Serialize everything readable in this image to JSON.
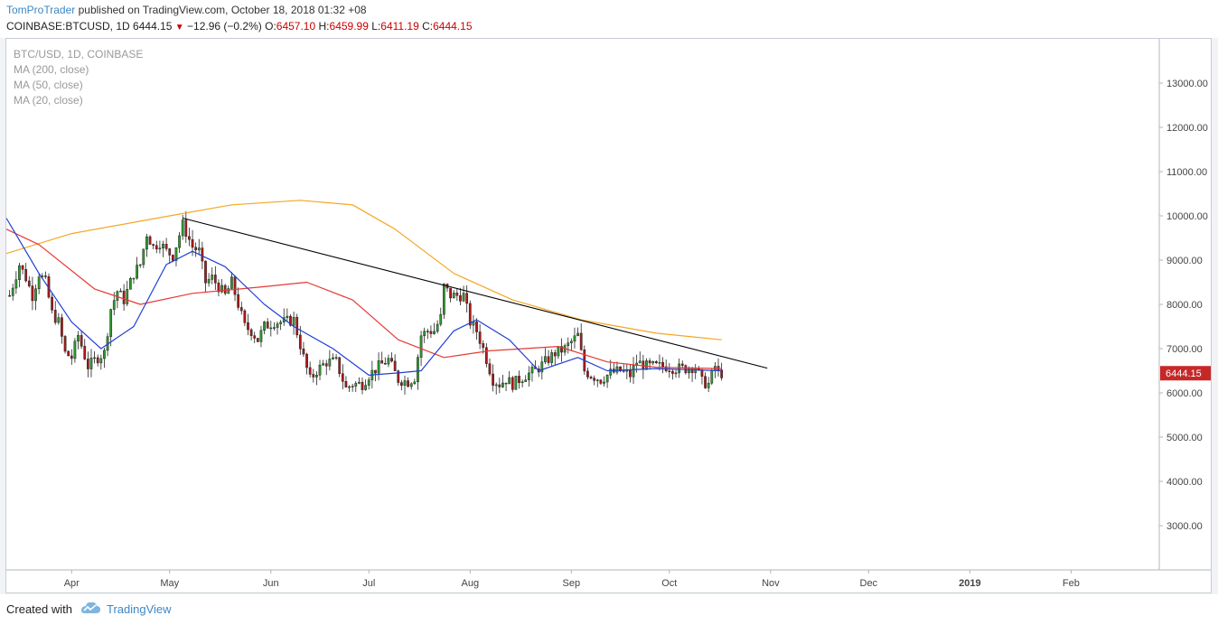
{
  "header": {
    "author": "TomProTrader",
    "published": "published on TradingView.com, October 18, 2018 01:32 +08"
  },
  "quote": {
    "symbol": "COINBASE:BTCUSD, 1D",
    "last": "6444.15",
    "change": "−12.96 (−0.2%)",
    "open_label": "O:",
    "open": "6457.10",
    "high_label": "H:",
    "high": "6459.99",
    "low_label": "L:",
    "low": "6411.19",
    "close_label": "C:",
    "close": "6444.15"
  },
  "legend": {
    "title": "BTC/USD, 1D, COINBASE",
    "ma200": "MA (200, close)",
    "ma50": "MA (50, close)",
    "ma20": "MA (20, close)"
  },
  "footer": {
    "created_with": "Created with",
    "brand": "TradingView"
  },
  "colors": {
    "up": "#2e9d2e",
    "down": "#b01818",
    "ma200": "#f5a623",
    "ma50": "#e53935",
    "ma20": "#1f3fd6",
    "trendline": "#000000",
    "price_badge": "#c62828"
  },
  "chart_data": {
    "type": "candlestick",
    "y_axis": {
      "ticks": [
        "13000.00",
        "12000.00",
        "11000.00",
        "10000.00",
        "9000.00",
        "8000.00",
        "7000.00",
        "6000.00",
        "5000.00",
        "4000.00",
        "3000.00"
      ],
      "range": [
        2000,
        14000
      ]
    },
    "x_axis": {
      "ticks": [
        "Apr",
        "May",
        "Jun",
        "Jul",
        "Aug",
        "Sep",
        "Oct",
        "Nov",
        "Dec",
        "2019",
        "Feb"
      ],
      "range": [
        "2018-03-12",
        "2019-02-28"
      ]
    },
    "last_price": "6444.15",
    "ohlc_anchor_closes": [
      [
        "2018-03-13",
        8200
      ],
      [
        "2018-03-16",
        8900
      ],
      [
        "2018-03-18",
        8600
      ],
      [
        "2018-03-20",
        8200
      ],
      [
        "2018-03-22",
        8700
      ],
      [
        "2018-03-24",
        8500
      ],
      [
        "2018-03-26",
        7800
      ],
      [
        "2018-03-28",
        7600
      ],
      [
        "2018-03-30",
        6900
      ],
      [
        "2018-04-01",
        6800
      ],
      [
        "2018-04-03",
        7300
      ],
      [
        "2018-04-06",
        6600
      ],
      [
        "2018-04-09",
        6800
      ],
      [
        "2018-04-11",
        6900
      ],
      [
        "2018-04-13",
        7900
      ],
      [
        "2018-04-15",
        8300
      ],
      [
        "2018-04-17",
        8100
      ],
      [
        "2018-04-20",
        8700
      ],
      [
        "2018-04-22",
        8900
      ],
      [
        "2018-04-24",
        9600
      ],
      [
        "2018-04-26",
        9300
      ],
      [
        "2018-04-28",
        9400
      ],
      [
        "2018-04-30",
        9200
      ],
      [
        "2018-05-02",
        9100
      ],
      [
        "2018-05-05",
        9800
      ],
      [
        "2018-05-08",
        9300
      ],
      [
        "2018-05-10",
        9200
      ],
      [
        "2018-05-12",
        8500
      ],
      [
        "2018-05-14",
        8600
      ],
      [
        "2018-05-16",
        8400
      ],
      [
        "2018-05-18",
        8200
      ],
      [
        "2018-05-20",
        8500
      ],
      [
        "2018-05-22",
        8000
      ],
      [
        "2018-05-24",
        7500
      ],
      [
        "2018-05-26",
        7400
      ],
      [
        "2018-05-28",
        7200
      ],
      [
        "2018-05-30",
        7500
      ],
      [
        "2018-06-02",
        7600
      ],
      [
        "2018-06-05",
        7600
      ],
      [
        "2018-06-08",
        7650
      ],
      [
        "2018-06-11",
        6800
      ],
      [
        "2018-06-13",
        6300
      ],
      [
        "2018-06-15",
        6500
      ],
      [
        "2018-06-18",
        6700
      ],
      [
        "2018-06-21",
        6700
      ],
      [
        "2018-06-24",
        6100
      ],
      [
        "2018-06-26",
        6200
      ],
      [
        "2018-06-29",
        6200
      ],
      [
        "2018-07-01",
        6400
      ],
      [
        "2018-07-04",
        6600
      ],
      [
        "2018-07-07",
        6750
      ],
      [
        "2018-07-10",
        6300
      ],
      [
        "2018-07-13",
        6250
      ],
      [
        "2018-07-15",
        6350
      ],
      [
        "2018-07-17",
        7300
      ],
      [
        "2018-07-19",
        7400
      ],
      [
        "2018-07-21",
        7400
      ],
      [
        "2018-07-23",
        7700
      ],
      [
        "2018-07-24",
        8400
      ],
      [
        "2018-07-26",
        8200
      ],
      [
        "2018-07-28",
        8200
      ],
      [
        "2018-07-30",
        8200
      ],
      [
        "2018-08-01",
        7600
      ],
      [
        "2018-08-03",
        7400
      ],
      [
        "2018-08-05",
        7000
      ],
      [
        "2018-08-08",
        6300
      ],
      [
        "2018-08-10",
        6200
      ],
      [
        "2018-08-12",
        6300
      ],
      [
        "2018-08-14",
        6200
      ],
      [
        "2018-08-16",
        6300
      ],
      [
        "2018-08-18",
        6400
      ],
      [
        "2018-08-21",
        6500
      ],
      [
        "2018-08-24",
        6700
      ],
      [
        "2018-08-27",
        6900
      ],
      [
        "2018-08-30",
        7000
      ],
      [
        "2018-09-03",
        7300
      ],
      [
        "2018-09-05",
        6500
      ],
      [
        "2018-09-07",
        6400
      ],
      [
        "2018-09-10",
        6300
      ],
      [
        "2018-09-13",
        6450
      ],
      [
        "2018-09-16",
        6500
      ],
      [
        "2018-09-19",
        6400
      ],
      [
        "2018-09-21",
        6700
      ],
      [
        "2018-09-24",
        6600
      ],
      [
        "2018-09-27",
        6600
      ],
      [
        "2018-09-30",
        6600
      ],
      [
        "2018-10-03",
        6550
      ],
      [
        "2018-10-06",
        6550
      ],
      [
        "2018-10-09",
        6600
      ],
      [
        "2018-10-11",
        6250
      ],
      [
        "2018-10-13",
        6200
      ],
      [
        "2018-10-15",
        6600
      ],
      [
        "2018-10-16",
        6450
      ],
      [
        "2018-10-17",
        6444.15
      ]
    ],
    "series": [
      {
        "name": "MA (200, close)",
        "values": [
          [
            "2018-03-12",
            9150
          ],
          [
            "2018-04-01",
            9600
          ],
          [
            "2018-05-01",
            10000
          ],
          [
            "2018-05-20",
            10250
          ],
          [
            "2018-06-10",
            10350
          ],
          [
            "2018-06-26",
            10250
          ],
          [
            "2018-07-09",
            9700
          ],
          [
            "2018-07-27",
            8700
          ],
          [
            "2018-08-14",
            8100
          ],
          [
            "2018-09-04",
            7650
          ],
          [
            "2018-09-27",
            7350
          ],
          [
            "2018-10-17",
            7200
          ]
        ]
      },
      {
        "name": "MA (50, close)",
        "values": [
          [
            "2018-03-12",
            9700
          ],
          [
            "2018-03-22",
            9350
          ],
          [
            "2018-04-08",
            8350
          ],
          [
            "2018-04-22",
            8000
          ],
          [
            "2018-05-08",
            8250
          ],
          [
            "2018-05-30",
            8400
          ],
          [
            "2018-06-12",
            8500
          ],
          [
            "2018-06-26",
            8100
          ],
          [
            "2018-07-10",
            7200
          ],
          [
            "2018-07-24",
            6800
          ],
          [
            "2018-08-07",
            6950
          ],
          [
            "2018-08-28",
            7050
          ],
          [
            "2018-09-12",
            6700
          ],
          [
            "2018-09-27",
            6580
          ],
          [
            "2018-10-17",
            6550
          ]
        ]
      },
      {
        "name": "MA (20, close)",
        "values": [
          [
            "2018-03-12",
            9950
          ],
          [
            "2018-03-22",
            8700
          ],
          [
            "2018-04-01",
            7600
          ],
          [
            "2018-04-10",
            7000
          ],
          [
            "2018-04-20",
            7500
          ],
          [
            "2018-04-30",
            8900
          ],
          [
            "2018-05-08",
            9200
          ],
          [
            "2018-05-18",
            8850
          ],
          [
            "2018-05-30",
            8000
          ],
          [
            "2018-06-08",
            7500
          ],
          [
            "2018-06-20",
            7000
          ],
          [
            "2018-07-01",
            6400
          ],
          [
            "2018-07-10",
            6450
          ],
          [
            "2018-07-17",
            6500
          ],
          [
            "2018-07-27",
            7400
          ],
          [
            "2018-08-03",
            7650
          ],
          [
            "2018-08-13",
            7200
          ],
          [
            "2018-08-22",
            6500
          ],
          [
            "2018-09-03",
            6800
          ],
          [
            "2018-09-12",
            6500
          ],
          [
            "2018-09-27",
            6550
          ],
          [
            "2018-10-17",
            6500
          ]
        ]
      },
      {
        "name": "trendline",
        "values": [
          [
            "2018-05-05",
            9950
          ],
          [
            "2018-10-31",
            6560
          ]
        ]
      }
    ]
  }
}
